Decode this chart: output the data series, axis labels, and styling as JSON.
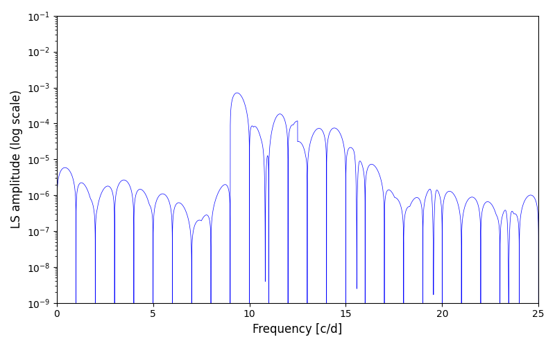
{
  "xlabel": "Frequency [c/d]",
  "ylabel": "LS amplitude (log scale)",
  "xlim": [
    0,
    25
  ],
  "ylim": [
    1e-09,
    0.1
  ],
  "line_color": "#0000ff",
  "line_width": 0.5,
  "background_color": "#ffffff",
  "fig_width": 8.0,
  "fig_height": 5.0,
  "dpi": 100,
  "n_points": 8000,
  "freq_max": 25.0,
  "seed": 42
}
